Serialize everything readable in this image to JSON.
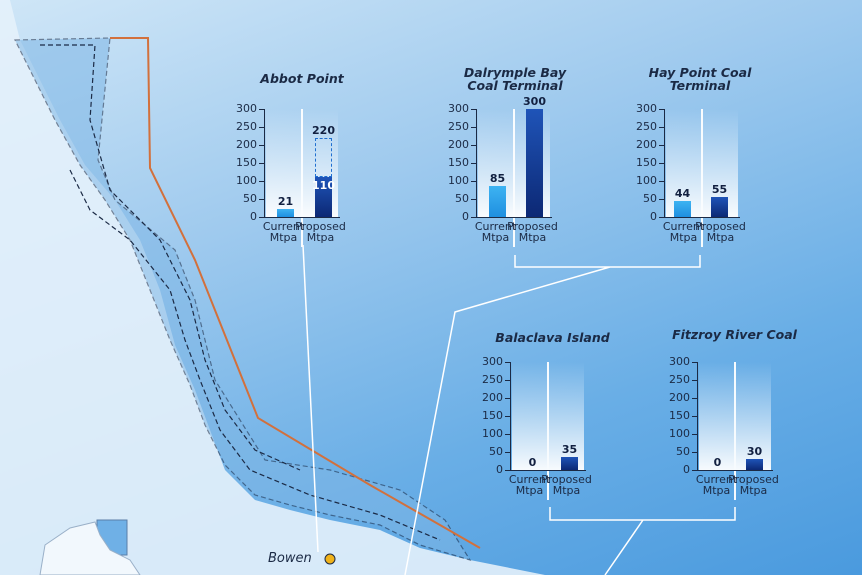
{
  "place": {
    "town": "Bowen"
  },
  "colors": {
    "current": "#2a9fe9",
    "proposed": "#133c97",
    "marine_park_boundary": "#d2703c"
  },
  "axis_ticks": [
    "300",
    "250",
    "200",
    "150",
    "100",
    "50",
    "0"
  ],
  "x_labels": {
    "current": "Current\nMtpa",
    "proposed": "Proposed\nMtpa"
  },
  "chart_data": [
    {
      "type": "bar",
      "title": "Abbot Point",
      "categories": [
        "Current Mtpa",
        "Proposed Mtpa"
      ],
      "values": [
        21,
        110
      ],
      "values_labels": [
        "21",
        "110"
      ],
      "extension": 220,
      "extension_label": "220",
      "ylim": [
        0,
        300
      ]
    },
    {
      "type": "bar",
      "title": "Dalrymple Bay\nCoal Terminal",
      "categories": [
        "Current Mtpa",
        "Proposed Mtpa"
      ],
      "values": [
        85,
        300
      ],
      "values_labels": [
        "85",
        "300"
      ],
      "ylim": [
        0,
        300
      ]
    },
    {
      "type": "bar",
      "title": "Hay Point Coal\nTerminal",
      "categories": [
        "Current Mtpa",
        "Proposed Mtpa"
      ],
      "values": [
        44,
        55
      ],
      "values_labels": [
        "44",
        "55"
      ],
      "ylim": [
        0,
        300
      ]
    },
    {
      "type": "bar",
      "title": "Balaclava Island",
      "categories": [
        "Current Mtpa",
        "Proposed Mtpa"
      ],
      "values": [
        0,
        35
      ],
      "values_labels": [
        "0",
        "35"
      ],
      "ylim": [
        0,
        300
      ]
    },
    {
      "type": "bar",
      "title": "Fitzroy River Coal",
      "categories": [
        "Current Mtpa",
        "Proposed Mtpa"
      ],
      "values": [
        0,
        30
      ],
      "values_labels": [
        "0",
        "30"
      ],
      "ylim": [
        0,
        300
      ]
    }
  ]
}
